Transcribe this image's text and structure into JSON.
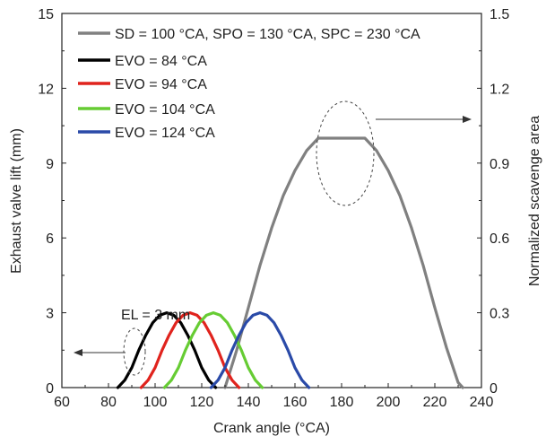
{
  "chart_data": {
    "type": "line",
    "title": "",
    "xlabel": "Crank angle (°CA)",
    "ylabel_left": "Exhaust valve lift (mm)",
    "ylabel_right": "Normalized scavenge area",
    "xlim": [
      60,
      240
    ],
    "ylim_left": [
      0,
      15
    ],
    "ylim_right": [
      0,
      1.5
    ],
    "x_ticks": [
      "60",
      "80",
      "100",
      "120",
      "140",
      "160",
      "180",
      "200",
      "220",
      "240"
    ],
    "y_left_ticks": [
      "0",
      "3",
      "6",
      "9",
      "12",
      "15"
    ],
    "y_right_ticks": [
      "0",
      "0.3",
      "0.6",
      "0.9",
      "1.2",
      "1.5"
    ],
    "grid": false,
    "legend_position": "top-left",
    "series": [
      {
        "name": "SD = 100 °CA, SPO = 130 °CA, SPC = 230 °CA",
        "color": "#808080",
        "axis": "right",
        "x": [
          130,
          135,
          140,
          145,
          150,
          155,
          160,
          165,
          170,
          190,
          195,
          200,
          205,
          210,
          215,
          220,
          225,
          230,
          232
        ],
        "y": [
          0.0,
          0.15,
          0.32,
          0.49,
          0.64,
          0.77,
          0.87,
          0.95,
          1.0,
          1.0,
          0.95,
          0.87,
          0.77,
          0.64,
          0.49,
          0.32,
          0.16,
          0.02,
          0.0
        ]
      },
      {
        "name": "EVO = 84 °CA",
        "color": "#000000",
        "axis": "left",
        "x": [
          84,
          87,
          90,
          93,
          96,
          99,
          102,
          105,
          108,
          111,
          114,
          117,
          120,
          123,
          126
        ],
        "y": [
          0.0,
          0.3,
          0.8,
          1.5,
          2.1,
          2.6,
          2.9,
          3.0,
          2.9,
          2.6,
          2.1,
          1.5,
          0.8,
          0.3,
          0.0
        ]
      },
      {
        "name": "EVO = 94 °CA",
        "color": "#e0231d",
        "axis": "left",
        "x": [
          94,
          97,
          100,
          103,
          106,
          109,
          112,
          115,
          118,
          121,
          124,
          127,
          130,
          133,
          136
        ],
        "y": [
          0.0,
          0.3,
          0.8,
          1.5,
          2.1,
          2.6,
          2.9,
          3.0,
          2.9,
          2.6,
          2.1,
          1.5,
          0.8,
          0.3,
          0.0
        ]
      },
      {
        "name": "EVO = 104 °CA",
        "color": "#66cc33",
        "axis": "left",
        "x": [
          104,
          107,
          110,
          113,
          116,
          119,
          122,
          125,
          128,
          131,
          134,
          137,
          140,
          143,
          146
        ],
        "y": [
          0.0,
          0.3,
          0.8,
          1.5,
          2.1,
          2.6,
          2.9,
          3.0,
          2.9,
          2.6,
          2.1,
          1.5,
          0.8,
          0.3,
          0.0
        ]
      },
      {
        "name": "EVO = 124 °CA",
        "color": "#2a4aa8",
        "axis": "left",
        "x": [
          124,
          127,
          130,
          133,
          136,
          139,
          142,
          145,
          148,
          151,
          154,
          157,
          160,
          163,
          166
        ],
        "y": [
          0.0,
          0.3,
          0.8,
          1.5,
          2.1,
          2.6,
          2.9,
          3.0,
          2.9,
          2.6,
          2.1,
          1.5,
          0.8,
          0.3,
          0.0
        ]
      }
    ],
    "annotations": [
      {
        "text": "EL = 3 mm"
      }
    ]
  }
}
